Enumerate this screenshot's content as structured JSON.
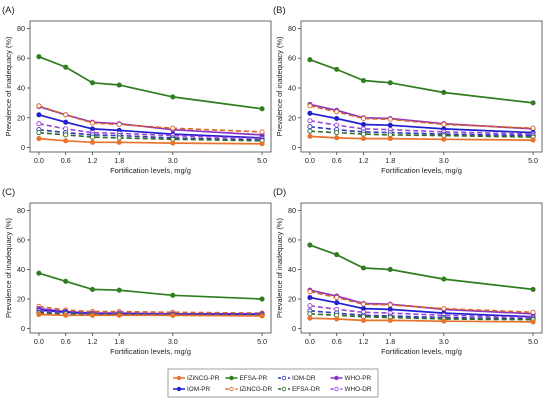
{
  "legend": {
    "items": [
      {
        "label": "IZiNCG-PR",
        "color": "#e8732d",
        "dashed": false
      },
      {
        "label": "EFSA-PR",
        "color": "#2f7d1f",
        "dashed": false
      },
      {
        "label": "IOM-DR",
        "color": "#3238b8",
        "dashed": true
      },
      {
        "label": "WHO-PR",
        "color": "#8b35c8",
        "dashed": false
      },
      {
        "label": "IOM-PR",
        "color": "#2020d0",
        "dashed": false
      },
      {
        "label": "IZiNCG-DR",
        "color": "#d9641f",
        "dashed": true
      },
      {
        "label": "EFSA-DR",
        "color": "#2c6b2a",
        "dashed": true
      },
      {
        "label": "WHO-DR",
        "color": "#9a44d8",
        "dashed": true
      }
    ]
  },
  "chart_data": [
    {
      "type": "line",
      "panel_label": "(A)",
      "xlabel": "Fortification levels, mg/g",
      "ylabel": "Prevalence of inadequacy (%)",
      "x": [
        0.0,
        0.6,
        1.2,
        1.8,
        3.0,
        5.0
      ],
      "x_tick_labels": [
        "0.0",
        "0.6",
        "1.2",
        "1.8",
        "3.0",
        "5.0"
      ],
      "y_ticks": [
        0,
        20,
        40,
        60,
        80
      ],
      "xlim": [
        -0.2,
        5.2
      ],
      "ylim": [
        -3,
        85
      ],
      "series": [
        {
          "name": "EFSA-PR",
          "color": "#2f7d1f",
          "dashed": false,
          "marker": "filled",
          "values": [
            61,
            54,
            43.5,
            42,
            34,
            26
          ]
        },
        {
          "name": "WHO-PR",
          "color": "#8b35c8",
          "dashed": false,
          "marker": "filled",
          "values": [
            27.5,
            22,
            17,
            16,
            12,
            8.5
          ]
        },
        {
          "name": "IZiNCG-DR",
          "color": "#d9641f",
          "dashed": true,
          "marker": "open",
          "values": [
            28,
            22,
            16.5,
            15.5,
            13,
            10.5
          ]
        },
        {
          "name": "IOM-PR",
          "color": "#2020d0",
          "dashed": false,
          "marker": "filled",
          "values": [
            22,
            17,
            12.5,
            11.5,
            9,
            6.5
          ]
        },
        {
          "name": "WHO-DR",
          "color": "#9a44d8",
          "dashed": true,
          "marker": "open",
          "values": [
            16,
            12.5,
            10,
            9.5,
            8,
            6
          ]
        },
        {
          "name": "IOM-DR",
          "color": "#3238b8",
          "dashed": true,
          "marker": "open",
          "values": [
            12,
            10,
            8.5,
            8,
            6.5,
            5
          ]
        },
        {
          "name": "EFSA-DR",
          "color": "#2c6b2a",
          "dashed": true,
          "marker": "open",
          "values": [
            10,
            8.5,
            7,
            6.5,
            5.5,
            4.5
          ]
        },
        {
          "name": "IZiNCG-PR",
          "color": "#e8732d",
          "dashed": false,
          "marker": "filled",
          "values": [
            6,
            4.5,
            3.5,
            3.5,
            3,
            2.5
          ]
        }
      ]
    },
    {
      "type": "line",
      "panel_label": "(B)",
      "xlabel": "Fortification levels, mg/g",
      "ylabel": "Prevalence of inadequacy (%)",
      "x": [
        0.0,
        0.6,
        1.2,
        1.8,
        3.0,
        5.0
      ],
      "x_tick_labels": [
        "0.0",
        "0.6",
        "1.2",
        "1.8",
        "3.0",
        "5.0"
      ],
      "y_ticks": [
        0,
        20,
        40,
        60,
        80
      ],
      "xlim": [
        -0.2,
        5.2
      ],
      "ylim": [
        -3,
        85
      ],
      "series": [
        {
          "name": "EFSA-PR",
          "color": "#2f7d1f",
          "dashed": false,
          "marker": "filled",
          "values": [
            59,
            52.5,
            45,
            43.5,
            37,
            30
          ]
        },
        {
          "name": "WHO-PR",
          "color": "#8b35c8",
          "dashed": false,
          "marker": "filled",
          "values": [
            29,
            25,
            20,
            19.5,
            16,
            12.5
          ]
        },
        {
          "name": "IZiNCG-DR",
          "color": "#d9641f",
          "dashed": true,
          "marker": "open",
          "values": [
            28,
            24,
            19.5,
            19,
            15.5,
            13
          ]
        },
        {
          "name": "IOM-PR",
          "color": "#2020d0",
          "dashed": false,
          "marker": "filled",
          "values": [
            23,
            19.5,
            15.5,
            15,
            12.5,
            10
          ]
        },
        {
          "name": "WHO-DR",
          "color": "#9a44d8",
          "dashed": true,
          "marker": "open",
          "values": [
            18,
            15,
            12.5,
            12,
            10.5,
            9
          ]
        },
        {
          "name": "IOM-DR",
          "color": "#3238b8",
          "dashed": true,
          "marker": "open",
          "values": [
            14,
            12,
            10.5,
            10,
            9,
            8
          ]
        },
        {
          "name": "EFSA-DR",
          "color": "#2c6b2a",
          "dashed": true,
          "marker": "open",
          "values": [
            11,
            10,
            9,
            8.5,
            8,
            7
          ]
        },
        {
          "name": "IZiNCG-PR",
          "color": "#e8732d",
          "dashed": false,
          "marker": "filled",
          "values": [
            7.5,
            6.5,
            6,
            6,
            5.5,
            5
          ]
        }
      ]
    },
    {
      "type": "line",
      "panel_label": "(C)",
      "xlabel": "Fortification levels, mg/g",
      "ylabel": "Prevalence of inadequacy (%)",
      "x": [
        0.0,
        0.6,
        1.2,
        1.8,
        3.0,
        5.0
      ],
      "x_tick_labels": [
        "0.0",
        "0.6",
        "1.2",
        "1.8",
        "3.0",
        "5.0"
      ],
      "y_ticks": [
        0,
        20,
        40,
        60,
        80
      ],
      "xlim": [
        -0.2,
        5.2
      ],
      "ylim": [
        -3,
        85
      ],
      "series": [
        {
          "name": "EFSA-PR",
          "color": "#2f7d1f",
          "dashed": false,
          "marker": "filled",
          "values": [
            37.5,
            32,
            26.5,
            26,
            22.5,
            20
          ]
        },
        {
          "name": "IZiNCG-DR",
          "color": "#d9641f",
          "dashed": true,
          "marker": "open",
          "values": [
            15,
            12.5,
            11.5,
            11.5,
            11,
            10.5
          ]
        },
        {
          "name": "WHO-PR",
          "color": "#8b35c8",
          "dashed": false,
          "marker": "filled",
          "values": [
            13.5,
            11.5,
            10.5,
            10.5,
            10,
            10
          ]
        },
        {
          "name": "IOM-PR",
          "color": "#2020d0",
          "dashed": false,
          "marker": "filled",
          "values": [
            12.5,
            11,
            10,
            10,
            9.5,
            9.5
          ]
        },
        {
          "name": "WHO-DR",
          "color": "#9a44d8",
          "dashed": true,
          "marker": "open",
          "values": [
            12,
            10.5,
            10,
            10,
            9.5,
            9.5
          ]
        },
        {
          "name": "IOM-DR",
          "color": "#3238b8",
          "dashed": true,
          "marker": "open",
          "values": [
            11,
            10,
            9.5,
            9.5,
            9.5,
            9
          ]
        },
        {
          "name": "EFSA-DR",
          "color": "#2c6b2a",
          "dashed": true,
          "marker": "open",
          "values": [
            10.5,
            10,
            9.5,
            9.5,
            9,
            9
          ]
        },
        {
          "name": "IZiNCG-PR",
          "color": "#e8732d",
          "dashed": false,
          "marker": "filled",
          "values": [
            9.5,
            9,
            9,
            9,
            9,
            8.5
          ]
        }
      ]
    },
    {
      "type": "line",
      "panel_label": "(D)",
      "xlabel": "Fortification levels, mg/g",
      "ylabel": "Prevalence of inadequacy (%)",
      "x": [
        0.0,
        0.6,
        1.2,
        1.8,
        3.0,
        5.0
      ],
      "x_tick_labels": [
        "0.0",
        "0.6",
        "1.2",
        "1.8",
        "3.0",
        "5.0"
      ],
      "y_ticks": [
        0,
        20,
        40,
        60,
        80
      ],
      "xlim": [
        -0.2,
        5.2
      ],
      "ylim": [
        -3,
        85
      ],
      "series": [
        {
          "name": "EFSA-PR",
          "color": "#2f7d1f",
          "dashed": false,
          "marker": "filled",
          "values": [
            56.5,
            50,
            41,
            40,
            33.5,
            26.5
          ]
        },
        {
          "name": "WHO-PR",
          "color": "#8b35c8",
          "dashed": false,
          "marker": "filled",
          "values": [
            26,
            22,
            17,
            16.5,
            13,
            10
          ]
        },
        {
          "name": "IZiNCG-DR",
          "color": "#d9641f",
          "dashed": true,
          "marker": "open",
          "values": [
            25,
            21,
            16.5,
            16,
            13.5,
            11
          ]
        },
        {
          "name": "IOM-PR",
          "color": "#2020d0",
          "dashed": false,
          "marker": "filled",
          "values": [
            21,
            17.5,
            13.5,
            13,
            10.5,
            8
          ]
        },
        {
          "name": "WHO-DR",
          "color": "#9a44d8",
          "dashed": true,
          "marker": "open",
          "values": [
            15.5,
            13,
            11,
            10.5,
            9,
            7.5
          ]
        },
        {
          "name": "IOM-DR",
          "color": "#3238b8",
          "dashed": true,
          "marker": "open",
          "values": [
            12,
            10.5,
            9,
            8.5,
            7.5,
            6.5
          ]
        },
        {
          "name": "EFSA-DR",
          "color": "#2c6b2a",
          "dashed": true,
          "marker": "open",
          "values": [
            10,
            9,
            8,
            7.5,
            6.5,
            6
          ]
        },
        {
          "name": "IZiNCG-PR",
          "color": "#e8732d",
          "dashed": false,
          "marker": "filled",
          "values": [
            7,
            6.5,
            5.5,
            5.5,
            5,
            4.5
          ]
        }
      ]
    }
  ]
}
